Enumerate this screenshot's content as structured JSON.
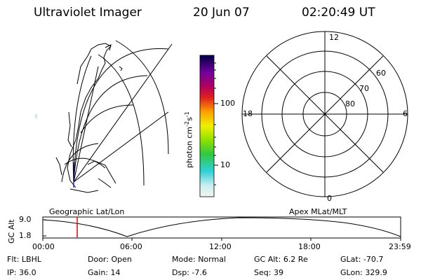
{
  "header": {
    "title": "Ultraviolet Imager",
    "date": "20 Jun 07",
    "time": "02:20:49 UT"
  },
  "colorbar": {
    "label": "photon cm",
    "label_sup1": "-2",
    "label_mid": "s",
    "label_sup2": "-1",
    "ticks": [
      "100",
      "10"
    ]
  },
  "polar_plot": {
    "mlt_labels": {
      "top": "12",
      "bottom": "0",
      "left": "18",
      "right": "6"
    },
    "lat_labels": [
      "60",
      "70",
      "80"
    ]
  },
  "panel_titles": {
    "left": "Geographic Lat/Lon",
    "right": "Apex MLat/MLT"
  },
  "altitude_plot": {
    "ylabel": "GC Alt",
    "yticks": [
      "9.0",
      "1.8"
    ],
    "xticks": [
      "00:00",
      "06:00",
      "12:00",
      "18:00",
      "23:59"
    ],
    "current_time_marker_color": "#e00000"
  },
  "status": {
    "row1": [
      {
        "key": "Flt:",
        "value": "LBHL"
      },
      {
        "key": "Door:",
        "value": "Open"
      },
      {
        "key": "Mode:",
        "value": "Normal"
      },
      {
        "key": "GC Alt:",
        "value": "6.2 Re"
      },
      {
        "key": "GLat:",
        "value": "-70.7"
      }
    ],
    "row2": [
      {
        "key": "IP:",
        "value": "36.0"
      },
      {
        "key": "Gain:",
        "value": "14"
      },
      {
        "key": "Dsp:",
        "value": "-7.6"
      },
      {
        "key": "Seq:",
        "value": "39"
      },
      {
        "key": "GLon:",
        "value": "329.9"
      }
    ]
  }
}
